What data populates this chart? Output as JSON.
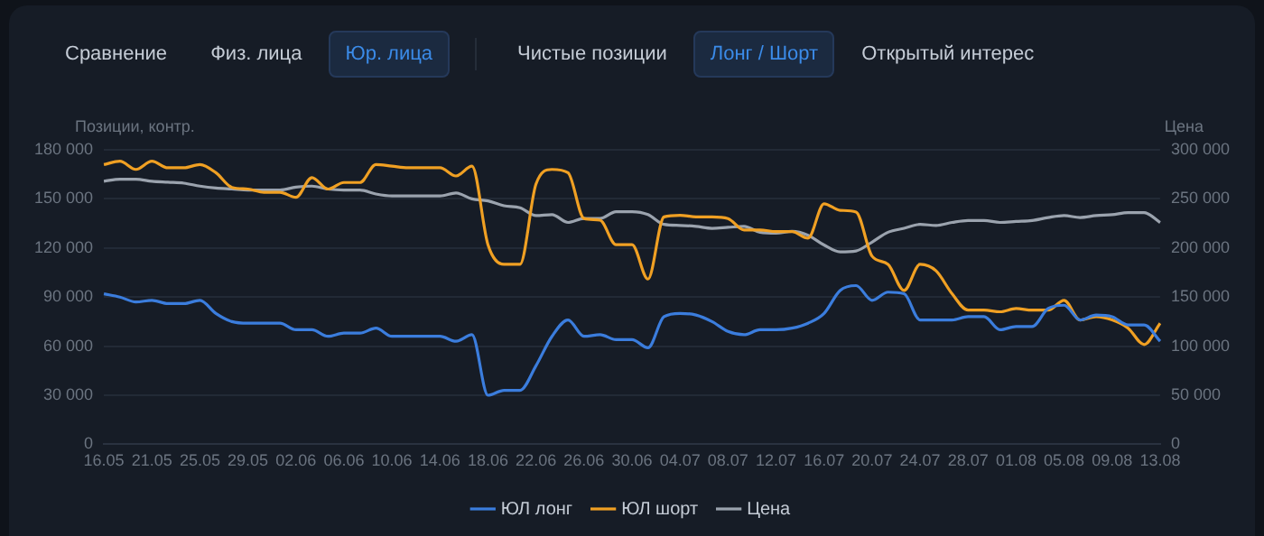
{
  "chart_data": {
    "type": "line",
    "ylabel": "Позиции, контр.",
    "y2label": "Цена",
    "annotations": [
      "Сравнение",
      "Физ. лица",
      "Юр. лица",
      "Чистые позиции",
      "Лонг / Шорт",
      "Открытый интерес"
    ],
    "categories": [
      "16.05",
      null,
      null,
      "21.05",
      null,
      null,
      "25.05",
      null,
      null,
      "29.05",
      null,
      null,
      "02.06",
      null,
      null,
      "06.06",
      null,
      null,
      "10.06",
      null,
      null,
      "14.06",
      null,
      null,
      "18.06",
      null,
      null,
      "22.06",
      null,
      null,
      "26.06",
      null,
      null,
      "30.06",
      null,
      null,
      "04.07",
      null,
      null,
      "08.07",
      null,
      null,
      "12.07",
      null,
      null,
      "16.07",
      null,
      null,
      "20.07",
      null,
      null,
      "24.07",
      null,
      null,
      "28.07",
      null,
      null,
      "01.08",
      null,
      null,
      "05.08",
      null,
      null,
      "09.08",
      null,
      null,
      "13.08"
    ],
    "series": [
      {
        "name": "ЮЛ лонг",
        "color": "#3b7ddd",
        "values": [
          92000,
          90000,
          87000,
          88000,
          86000,
          86000,
          88000,
          80000,
          75000,
          74000,
          74000,
          74000,
          70000,
          70000,
          66000,
          68000,
          68000,
          71000,
          66000,
          66000,
          66000,
          66000,
          63000,
          67000,
          30000,
          33000,
          33000,
          48000,
          66000,
          76000,
          66000,
          67000,
          64000,
          64000,
          59000,
          78000,
          80000,
          79000,
          75000,
          69000,
          67000,
          70000,
          70000,
          71000,
          74000,
          80000,
          94000,
          97000,
          88000,
          93000,
          92000,
          76000,
          76000,
          76000,
          78000,
          78000,
          70000,
          72000,
          72000,
          83000,
          85000,
          76000,
          79000,
          78000,
          73000,
          73000,
          63000
        ]
      },
      {
        "name": "ЮЛ шорт",
        "color": "#f0a023",
        "values": [
          171000,
          173000,
          168000,
          173000,
          169000,
          169000,
          171000,
          166000,
          157000,
          156000,
          154000,
          154000,
          151000,
          163000,
          156000,
          160000,
          160000,
          171000,
          170000,
          169000,
          169000,
          169000,
          164000,
          170000,
          122000,
          110000,
          110000,
          159000,
          168000,
          166000,
          138000,
          137000,
          122000,
          122000,
          101000,
          139000,
          140000,
          139000,
          139000,
          138000,
          131000,
          131000,
          130000,
          130000,
          126000,
          147000,
          143000,
          142000,
          115000,
          110000,
          94000,
          110000,
          106000,
          92000,
          82000,
          82000,
          81000,
          83000,
          82000,
          82000,
          88000,
          76000,
          78000,
          76000,
          71000,
          61000,
          74000
        ]
      },
      {
        "name": "Цена",
        "color": "#9ba3ae",
        "axis": "y2",
        "values": [
          268000,
          270000,
          270000,
          268000,
          267000,
          266000,
          263000,
          261000,
          260000,
          259000,
          259000,
          259000,
          262000,
          263000,
          260000,
          259000,
          259000,
          255000,
          253000,
          253000,
          253000,
          253000,
          256000,
          250000,
          248000,
          243000,
          241000,
          233000,
          234000,
          226000,
          230000,
          230000,
          237000,
          237000,
          234000,
          224000,
          223000,
          222000,
          220000,
          221000,
          222000,
          216000,
          215000,
          217000,
          213000,
          203000,
          196000,
          197000,
          206000,
          216000,
          220000,
          224000,
          223000,
          226000,
          228000,
          228000,
          226000,
          227000,
          228000,
          231000,
          233000,
          231000,
          233000,
          234000,
          236000,
          236000,
          226000
        ]
      }
    ],
    "ylim": [
      0,
      180000
    ],
    "yticks": [
      0,
      {
        "value": 30000,
        "label": "30 000"
      },
      {
        "value": 60000,
        "label": "60 000"
      },
      {
        "value": 90000,
        "label": "90 000"
      },
      {
        "value": 120000,
        "label": "120 000"
      },
      {
        "value": 150000,
        "label": "150 000"
      },
      {
        "value": 180000,
        "label": "180 000"
      }
    ],
    "y2lim": [
      0,
      300000
    ],
    "y2ticks": [
      0,
      {
        "value": 50000,
        "label": "50 000"
      },
      {
        "value": 100000,
        "label": "100 000"
      },
      {
        "value": 150000,
        "label": "150 000"
      },
      {
        "value": 200000,
        "label": "200 000"
      },
      {
        "value": 250000,
        "label": "250 000"
      },
      {
        "value": 300000,
        "label": "300 000"
      }
    ],
    "grid": "y",
    "legend": "bottom",
    "marker": "none",
    "line_style": "solid"
  }
}
